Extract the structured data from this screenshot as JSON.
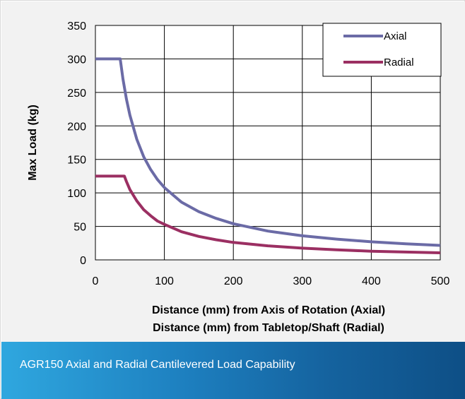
{
  "caption": "AGR150 Axial and Radial Cantilevered Load Capability",
  "colors": {
    "axial": "#6b6ba6",
    "radial": "#9b2f62",
    "plot_background": "#ffffff",
    "chart_background": "#f2f2f2",
    "grid": "#000000"
  },
  "chart_data": {
    "type": "line",
    "title": "",
    "xlabel": [
      "Distance (mm) from Axis of Rotation (Axial)",
      "Distance (mm) from Tabletop/Shaft (Radial)"
    ],
    "ylabel": "Max Load (kg)",
    "xlim": [
      0,
      500
    ],
    "ylim": [
      0,
      350
    ],
    "x_ticks": [
      "0",
      "100",
      "200",
      "300",
      "400",
      "500"
    ],
    "y_ticks": [
      "0",
      "50",
      "100",
      "150",
      "200",
      "250",
      "300",
      "350"
    ],
    "grid": true,
    "legend": "top-right",
    "series": [
      {
        "name": "Axial",
        "x": [
          0,
          36,
          40,
          45,
          50,
          60,
          70,
          80,
          90,
          100,
          125,
          150,
          175,
          200,
          250,
          300,
          350,
          400,
          450,
          500
        ],
        "y": [
          300,
          300,
          270,
          240,
          216,
          180,
          154,
          135,
          120,
          108,
          86,
          72,
          62,
          54,
          43,
          36,
          31,
          27,
          24,
          21.6
        ]
      },
      {
        "name": "Radial",
        "x": [
          0,
          42,
          45,
          50,
          60,
          70,
          80,
          90,
          100,
          125,
          150,
          175,
          200,
          250,
          300,
          350,
          400,
          450,
          500
        ],
        "y": [
          125,
          125,
          117,
          105,
          88,
          75,
          66,
          58,
          53,
          42,
          35,
          30,
          26,
          21,
          17.5,
          15,
          13,
          11.7,
          10.5
        ]
      }
    ]
  }
}
